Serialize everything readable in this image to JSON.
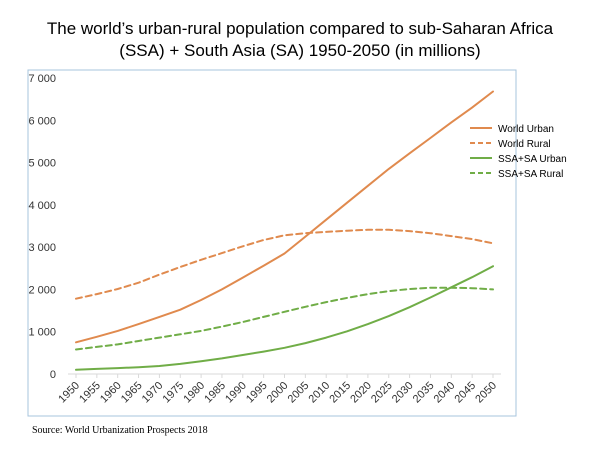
{
  "title_lines": [
    "The world’s urban-rural population compared to sub-Saharan Africa",
    "(SSA) + South Asia (SA) 1950-2050 (in millions)"
  ],
  "source": "Source: World Urbanization Prospects 2018",
  "colors": {
    "orange": "#e08a4e",
    "green": "#70ad47",
    "axis": "#d9d9d9",
    "frame": "#a7c4de"
  },
  "chart_data": {
    "type": "line",
    "title": "The world’s urban-rural population compared to sub-Saharan Africa (SSA) + South Asia (SA) 1950-2050 (in millions)",
    "xlabel": "",
    "ylabel": "",
    "ylim": [
      0,
      7000
    ],
    "yticks": [
      0,
      1000,
      2000,
      3000,
      4000,
      5000,
      6000,
      7000
    ],
    "ytick_labels": [
      "0",
      "1 000",
      "2 000",
      "3 000",
      "4 000",
      "5 000",
      "6 000",
      "7 000"
    ],
    "grid": false,
    "legend_position": "right",
    "categories": [
      "1950",
      "1955",
      "1960",
      "1965",
      "1970",
      "1975",
      "1980",
      "1985",
      "1990",
      "1995",
      "2000",
      "2005",
      "2010",
      "2015",
      "2020",
      "2025",
      "2030",
      "2035",
      "2040",
      "2045",
      "2050"
    ],
    "series": [
      {
        "name": "World Urban",
        "color": "#e08a4e",
        "dash": false,
        "values": [
          750,
          880,
          1020,
          1180,
          1350,
          1520,
          1750,
          2000,
          2280,
          2560,
          2850,
          3250,
          3650,
          4050,
          4450,
          4850,
          5220,
          5580,
          5950,
          6300,
          6680
        ]
      },
      {
        "name": "World Rural",
        "color": "#e08a4e",
        "dash": true,
        "values": [
          1780,
          1890,
          2010,
          2160,
          2350,
          2530,
          2700,
          2860,
          3020,
          3170,
          3280,
          3330,
          3360,
          3390,
          3410,
          3410,
          3380,
          3330,
          3260,
          3190,
          3090
        ]
      },
      {
        "name": "SSA+SA Urban",
        "color": "#70ad47",
        "dash": false,
        "values": [
          100,
          120,
          140,
          160,
          190,
          240,
          300,
          370,
          450,
          530,
          620,
          730,
          860,
          1010,
          1180,
          1370,
          1580,
          1810,
          2050,
          2290,
          2550
        ]
      },
      {
        "name": "SSA+SA Rural",
        "color": "#70ad47",
        "dash": true,
        "values": [
          580,
          640,
          700,
          780,
          860,
          940,
          1020,
          1120,
          1230,
          1350,
          1470,
          1590,
          1700,
          1800,
          1890,
          1960,
          2010,
          2040,
          2040,
          2030,
          2000
        ]
      }
    ]
  }
}
